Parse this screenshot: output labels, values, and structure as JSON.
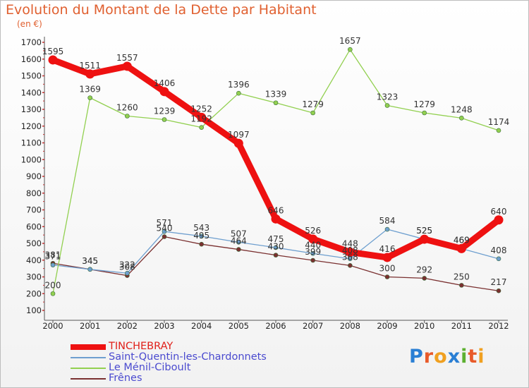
{
  "header": {
    "title": "Evolution du Montant de la Dette par Habitant",
    "subtitle": "(en €)"
  },
  "logo": {
    "text": "Proxiti",
    "letters": [
      "P",
      "r",
      "o",
      "x",
      "i",
      "t",
      "i"
    ],
    "letter_colors": [
      "#2a7fd4",
      "#e85a2a",
      "#f0a020",
      "#2a7fd4",
      "#5cb030",
      "#e85a2a",
      "#f0a020"
    ]
  },
  "chart_data": {
    "type": "line",
    "title": "Evolution du Montant de la Dette par Habitant",
    "subtitle": "(en €)",
    "xlabel": "",
    "ylabel": "",
    "x": [
      "2000",
      "2001",
      "2002",
      "2003",
      "2004",
      "2005",
      "2006",
      "2007",
      "2008",
      "2009",
      "2010",
      "2011",
      "2012"
    ],
    "ylim": [
      100,
      1700
    ],
    "yticks": [
      100,
      200,
      300,
      400,
      500,
      600,
      700,
      800,
      900,
      1000,
      1100,
      1200,
      1300,
      1400,
      1500,
      1600,
      1700
    ],
    "grid": false,
    "legend_position": "bottom-left",
    "series": [
      {
        "name": "TINCHEBRAY",
        "color": "#ee1111",
        "values": [
          1595,
          1511,
          1557,
          1406,
          1252,
          1097,
          646,
          526,
          448,
          416,
          525,
          469,
          640
        ],
        "labels": [
          "1595",
          "1511",
          "1557",
          "1406",
          "1252",
          "1097",
          "646",
          "526",
          "448",
          "416",
          "525",
          "469",
          "640"
        ]
      },
      {
        "name": "Saint-Quentin-les-Chardonnets",
        "color": "#6e9fcf",
        "values": [
          371,
          345,
          322,
          571,
          543,
          507,
          475,
          440,
          408,
          584,
          525,
          469,
          408
        ],
        "labels": [
          "371",
          "345",
          "322",
          "571",
          "543",
          "507",
          "475",
          "440",
          "408",
          "584",
          "525",
          "469",
          "408"
        ]
      },
      {
        "name": "Le Ménil-Ciboult",
        "color": "#92d050",
        "values": [
          200,
          1369,
          1260,
          1239,
          1192,
          1396,
          1339,
          1279,
          1657,
          1323,
          1279,
          1248,
          1174
        ],
        "labels": [
          "200",
          "1369",
          "1260",
          "1239",
          "1192",
          "1396",
          "1339",
          "1279",
          "1657",
          "1323",
          "1279",
          "1248",
          "1174"
        ]
      },
      {
        "name": "Frênes",
        "color": "#7a3030",
        "values": [
          381,
          345,
          308,
          540,
          495,
          464,
          430,
          399,
          368,
          300,
          292,
          250,
          217
        ],
        "labels": [
          "381",
          "345",
          "308",
          "540",
          "495",
          "464",
          "430",
          "399",
          "368",
          "300",
          "292",
          "250",
          "217"
        ]
      }
    ]
  }
}
